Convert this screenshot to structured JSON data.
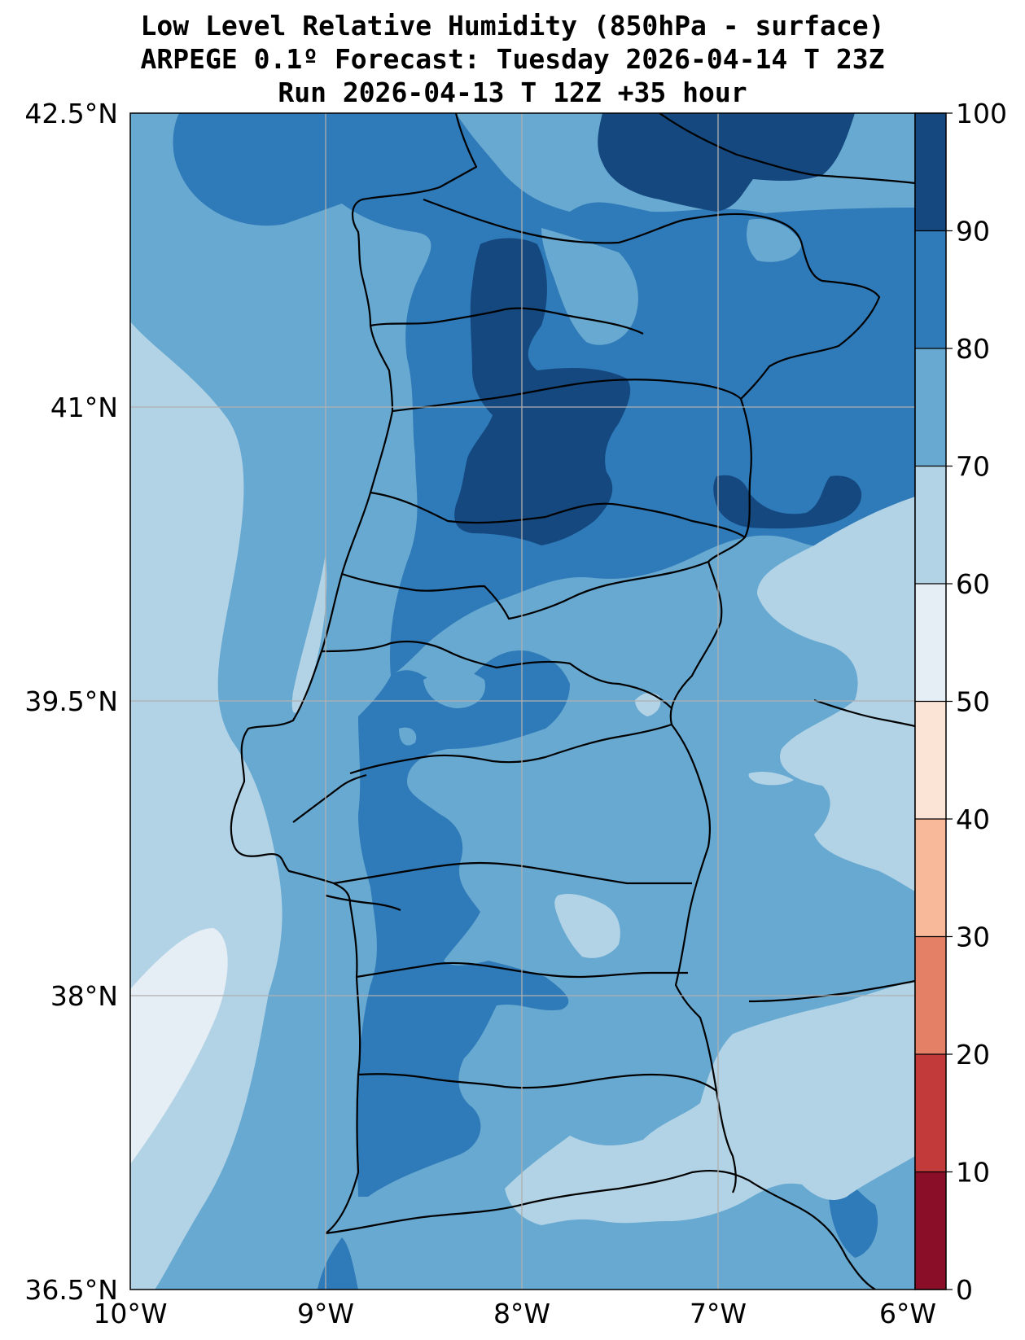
{
  "title": {
    "line1": "Low Level Relative Humidity (850hPa - surface)",
    "line2": "ARPEGE 0.1º Forecast: Tuesday 2026-04-14 T 23Z",
    "line3": "Run 2026-04-13 T 12Z +35 hour"
  },
  "axes": {
    "lat_labels": [
      "42.5°N",
      "41°N",
      "39.5°N",
      "38°N",
      "36.5°N"
    ],
    "lon_labels": [
      "10°W",
      "9°W",
      "8°W",
      "7°W",
      "6°W"
    ],
    "lat_range": [
      36.5,
      42.5
    ],
    "lon_range": [
      -10,
      -6
    ]
  },
  "colorbar": {
    "levels": [
      0,
      10,
      20,
      30,
      40,
      50,
      60,
      70,
      80,
      90,
      100
    ],
    "labels": [
      "0",
      "10",
      "20",
      "30",
      "40",
      "50",
      "60",
      "70",
      "80",
      "90",
      "100"
    ],
    "colors": [
      "#8b0e28",
      "#c23b3a",
      "#e48066",
      "#f8b99b",
      "#fbe3d6",
      "#e5edf5",
      "#b2d3e6",
      "#68a9d1",
      "#2f7ab8",
      "#14487f"
    ]
  }
}
